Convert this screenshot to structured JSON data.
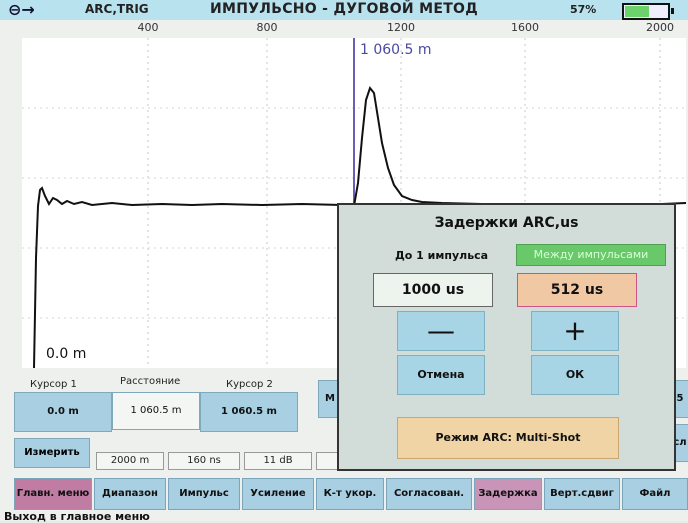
{
  "header": {
    "exit_icon": "exit-arrow-icon",
    "mode": "ARC,TRIG",
    "title": "ИМПУЛЬСНО - ДУГОВОЙ МЕТОД",
    "battery_pct": "57%",
    "battery_level": 0.57
  },
  "plot": {
    "x_ticks": [
      "400",
      "800",
      "1200",
      "1600",
      "2000"
    ],
    "cursor_right_readout": "1 060.5 m",
    "cursor_left_readout": "0.0 m"
  },
  "info": {
    "cursor1_label": "Курсор 1",
    "distance_label": "Расстояние",
    "cursor2_label": "Курсор 2",
    "cursor1_value": "0.0 m",
    "distance_value": "1 060.5 m",
    "cursor2_value": "1 060.5 m",
    "measure_button": "Измерить",
    "range_value": "2000 m",
    "pulse_value": "160 ns",
    "gain_value": "11 dB",
    "partial_m": "M",
    "partial_right_top": "5 +",
    "partial_right_mid": "сл"
  },
  "dialog": {
    "title": "Задержки ARC,us",
    "label_before_pulse": "До 1 импульса",
    "label_between_pulses": "Между импульсами",
    "value_before": "1000 us",
    "value_between": "512 us",
    "minus": "—",
    "plus": "+",
    "cancel": "Отмена",
    "ok": "ОК",
    "mode_button": "Режим ARC: Multi-Shot"
  },
  "menu": [
    "Главн. меню",
    "Диапазон",
    "Импульс",
    "Усиление",
    "К-т укор.",
    "Согласован.",
    "Задержка",
    "Верт.сдвиг",
    "Файл"
  ],
  "status": "Выход в главное меню"
}
